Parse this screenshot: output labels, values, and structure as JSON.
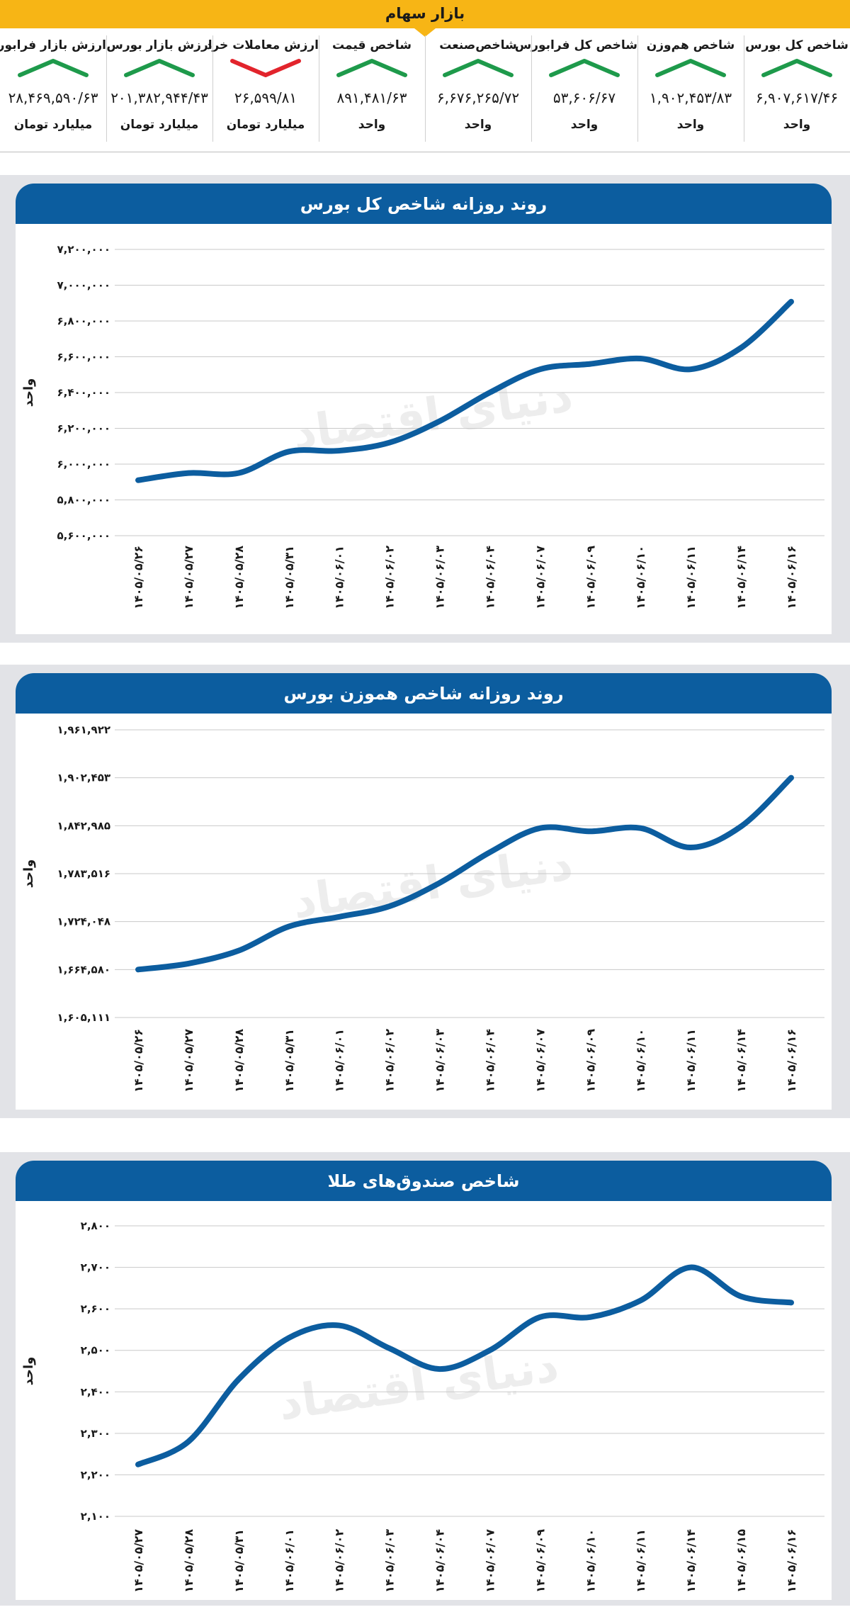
{
  "banner": {
    "title": "بازار سهام"
  },
  "tiles": [
    {
      "label": "شاخص کل بورس",
      "value": "۶,۹۰۷,۶۱۷/۴۶",
      "unit": "واحد",
      "trend": "up"
    },
    {
      "label": "شاخص هم‌وزن",
      "value": "۱,۹۰۲,۴۵۳/۸۳",
      "unit": "واحد",
      "trend": "up"
    },
    {
      "label": "شاخص کل فرابورس",
      "value": "۵۳,۶۰۶/۶۷",
      "unit": "واحد",
      "trend": "up"
    },
    {
      "label": "شاخص‌صنعت",
      "value": "۶,۶۷۶,۲۶۵/۷۲",
      "unit": "واحد",
      "trend": "up"
    },
    {
      "label": "شاخص قیمت",
      "value": "۸۹۱,۴۸۱/۶۳",
      "unit": "واحد",
      "trend": "up"
    },
    {
      "label": "ارزش معاملات خرد",
      "value": "۲۶,۵۹۹/۸۱",
      "unit": "میلیارد تومان",
      "trend": "down"
    },
    {
      "label": "ارزش بازار بورس",
      "value": "۲۰۱,۳۸۲,۹۴۴/۴۳",
      "unit": "میلیارد تومان",
      "trend": "up"
    },
    {
      "label": "ارزش بازار فرابورس",
      "value": "۲۸,۴۶۹,۵۹۰/۶۳",
      "unit": "میلیارد تومان",
      "trend": "up"
    }
  ],
  "colors": {
    "up": "#1e9a4b",
    "down": "#e2242c",
    "accent": "#f7b515",
    "header": "#0c5d9f",
    "line": "#0c5d9f"
  },
  "watermark": "دنیای اقتصاد",
  "chart_data": [
    {
      "type": "line",
      "title": "روند روزانه شاخص کل بورس",
      "ylabel": "واحد",
      "grid": true,
      "ylim": [
        5600000,
        7200000
      ],
      "yticks": [
        5600000,
        5800000,
        6000000,
        6200000,
        6400000,
        6600000,
        6800000,
        7000000,
        7200000
      ],
      "ytick_labels": [
        "۵,۶۰۰,۰۰۰",
        "۵,۸۰۰,۰۰۰",
        "۶,۰۰۰,۰۰۰",
        "۶,۲۰۰,۰۰۰",
        "۶,۴۰۰,۰۰۰",
        "۶,۶۰۰,۰۰۰",
        "۶,۸۰۰,۰۰۰",
        "۷,۰۰۰,۰۰۰",
        "۷,۲۰۰,۰۰۰"
      ],
      "categories": [
        "۱۴۰۵/۰۵/۲۶",
        "۱۴۰۵/۰۵/۲۷",
        "۱۴۰۵/۰۵/۲۸",
        "۱۴۰۵/۰۵/۳۱",
        "۱۴۰۵/۰۶/۰۱",
        "۱۴۰۵/۰۶/۰۲",
        "۱۴۰۵/۰۶/۰۳",
        "۱۴۰۵/۰۶/۰۴",
        "۱۴۰۵/۰۶/۰۷",
        "۱۴۰۵/۰۶/۰۹",
        "۱۴۰۵/۰۶/۱۰",
        "۱۴۰۵/۰۶/۱۱",
        "۱۴۰۵/۰۶/۱۴",
        "۱۴۰۵/۰۶/۱۶"
      ],
      "values": [
        5910000,
        5950000,
        5950000,
        6070000,
        6075000,
        6120000,
        6240000,
        6400000,
        6530000,
        6560000,
        6590000,
        6530000,
        6650000,
        6908000
      ]
    },
    {
      "type": "line",
      "title": "روند روزانه شاخص هموزن بورس",
      "ylabel": "واحد",
      "grid": true,
      "ylim": [
        1605111,
        1961922
      ],
      "yticks": [
        1605111,
        1664580,
        1724048,
        1783516,
        1842985,
        1902453,
        1961922
      ],
      "ytick_labels": [
        "۱,۶۰۵,۱۱۱",
        "۱,۶۶۴,۵۸۰",
        "۱,۷۲۴,۰۴۸",
        "۱,۷۸۳,۵۱۶",
        "۱,۸۴۲,۹۸۵",
        "۱,۹۰۲,۴۵۳",
        "۱,۹۶۱,۹۲۲"
      ],
      "categories": [
        "۱۴۰۵/۰۵/۲۶",
        "۱۴۰۵/۰۵/۲۷",
        "۱۴۰۵/۰۵/۲۸",
        "۱۴۰۵/۰۵/۳۱",
        "۱۴۰۵/۰۶/۰۱",
        "۱۴۰۵/۰۶/۰۲",
        "۱۴۰۵/۰۶/۰۳",
        "۱۴۰۵/۰۶/۰۴",
        "۱۴۰۵/۰۶/۰۷",
        "۱۴۰۵/۰۶/۰۹",
        "۱۴۰۵/۰۶/۱۰",
        "۱۴۰۵/۰۶/۱۱",
        "۱۴۰۵/۰۶/۱۴",
        "۱۴۰۵/۰۶/۱۶"
      ],
      "values": [
        1664600,
        1672000,
        1688000,
        1718000,
        1730000,
        1743000,
        1772000,
        1810000,
        1840000,
        1836000,
        1840000,
        1816000,
        1842000,
        1902453
      ]
    },
    {
      "type": "line",
      "title": "شاخص صندوق‌های طلا",
      "ylabel": "واحد",
      "grid": true,
      "ylim": [
        2100,
        2800
      ],
      "yticks": [
        2100,
        2200,
        2300,
        2400,
        2500,
        2600,
        2700,
        2800
      ],
      "ytick_labels": [
        "۲,۱۰۰",
        "۲,۲۰۰",
        "۲,۳۰۰",
        "۲,۴۰۰",
        "۲,۵۰۰",
        "۲,۶۰۰",
        "۲,۷۰۰",
        "۲,۸۰۰"
      ],
      "categories": [
        "۱۴۰۵/۰۵/۲۷",
        "۱۴۰۵/۰۵/۲۸",
        "۱۴۰۵/۰۵/۳۱",
        "۱۴۰۵/۰۶/۰۱",
        "۱۴۰۵/۰۶/۰۲",
        "۱۴۰۵/۰۶/۰۳",
        "۱۴۰۵/۰۶/۰۴",
        "۱۴۰۵/۰۶/۰۷",
        "۱۴۰۵/۰۶/۰۹",
        "۱۴۰۵/۰۶/۱۰",
        "۱۴۰۵/۰۶/۱۱",
        "۱۴۰۵/۰۶/۱۴",
        "۱۴۰۵/۰۶/۱۵",
        "۱۴۰۵/۰۶/۱۶"
      ],
      "values": [
        2225,
        2280,
        2430,
        2530,
        2560,
        2505,
        2455,
        2500,
        2580,
        2580,
        2620,
        2700,
        2630,
        2615
      ]
    }
  ]
}
